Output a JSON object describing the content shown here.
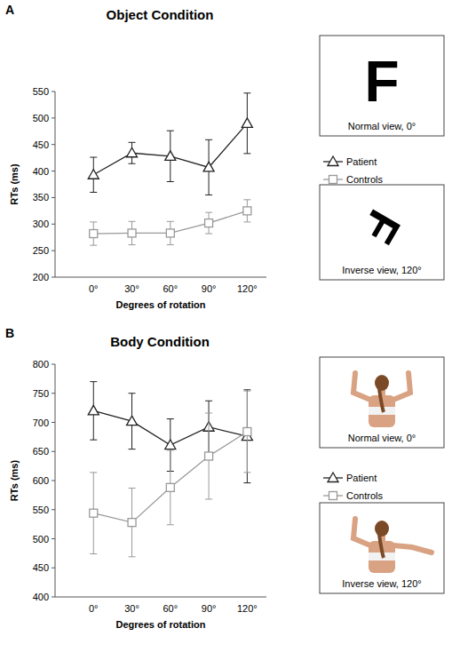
{
  "chart_data": [
    {
      "type": "line",
      "panel": "A",
      "title": "Object Condition",
      "x_label": "Degrees of rotation",
      "y_label": "RTs (ms)",
      "categories": [
        "0°",
        "30°",
        "60°",
        "90°",
        "120°"
      ],
      "ylim": [
        200,
        550
      ],
      "yticks": [
        200,
        250,
        300,
        350,
        400,
        450,
        500,
        550
      ],
      "legend": "right",
      "series": [
        {
          "name": "Patient",
          "color": "#222222",
          "marker": "triangle",
          "values": [
            393,
            434,
            428,
            407,
            490
          ],
          "errors": [
            33,
            20,
            48,
            52,
            57
          ]
        },
        {
          "name": "Controls",
          "color": "#999999",
          "marker": "square",
          "values": [
            282,
            283,
            283,
            302,
            325
          ],
          "errors": [
            22,
            22,
            22,
            20,
            21
          ]
        }
      ],
      "insets": [
        {
          "caption": "Normal view, 0°",
          "symbol": "F"
        },
        {
          "caption": "Inverse view, 120°",
          "symbol": "F"
        }
      ]
    },
    {
      "type": "line",
      "panel": "B",
      "title": "Body Condition",
      "x_label": "Degrees of rotation",
      "y_label": "RTs (ms)",
      "categories": [
        "0°",
        "30°",
        "60°",
        "90°",
        "120°"
      ],
      "ylim": [
        400,
        800
      ],
      "yticks": [
        400,
        450,
        500,
        550,
        600,
        650,
        700,
        750,
        800
      ],
      "legend": "right",
      "series": [
        {
          "name": "Patient",
          "color": "#222222",
          "marker": "triangle",
          "values": [
            720,
            702,
            661,
            692,
            676
          ],
          "errors": [
            50,
            48,
            45,
            45,
            80
          ]
        },
        {
          "name": "Controls",
          "color": "#999999",
          "marker": "square",
          "values": [
            544,
            528,
            588,
            642,
            684
          ],
          "errors": [
            70,
            59,
            64,
            74,
            70
          ]
        }
      ],
      "insets": [
        {
          "caption": "Normal view, 0°"
        },
        {
          "caption": "Inverse view, 120°"
        }
      ]
    }
  ]
}
